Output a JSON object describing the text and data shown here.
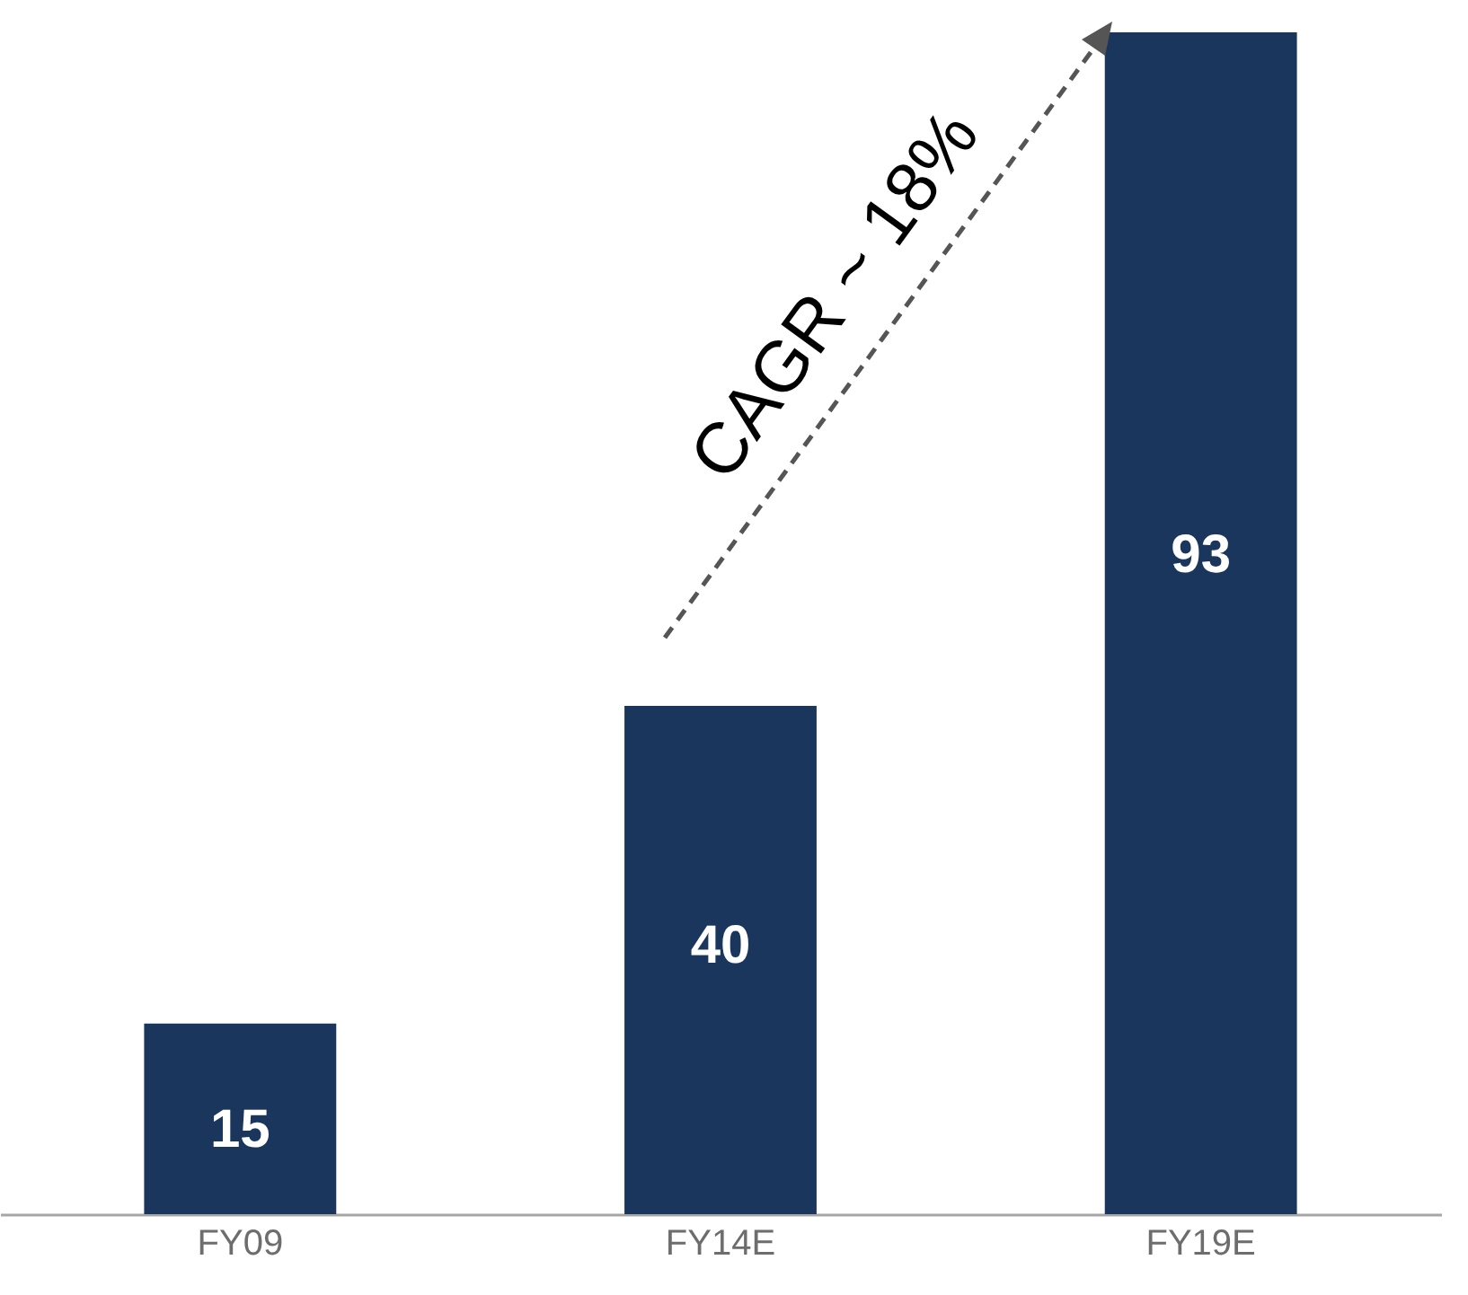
{
  "chart_data": {
    "type": "bar",
    "categories": [
      "FY09",
      "FY14E",
      "FY19E"
    ],
    "series": [
      {
        "color": "#1b365d",
        "values": [
          15,
          40,
          93
        ]
      }
    ],
    "data_labels": true,
    "tick_labels": "x",
    "grid": false,
    "annotations": [
      "CAGR ~ 18%"
    ]
  }
}
